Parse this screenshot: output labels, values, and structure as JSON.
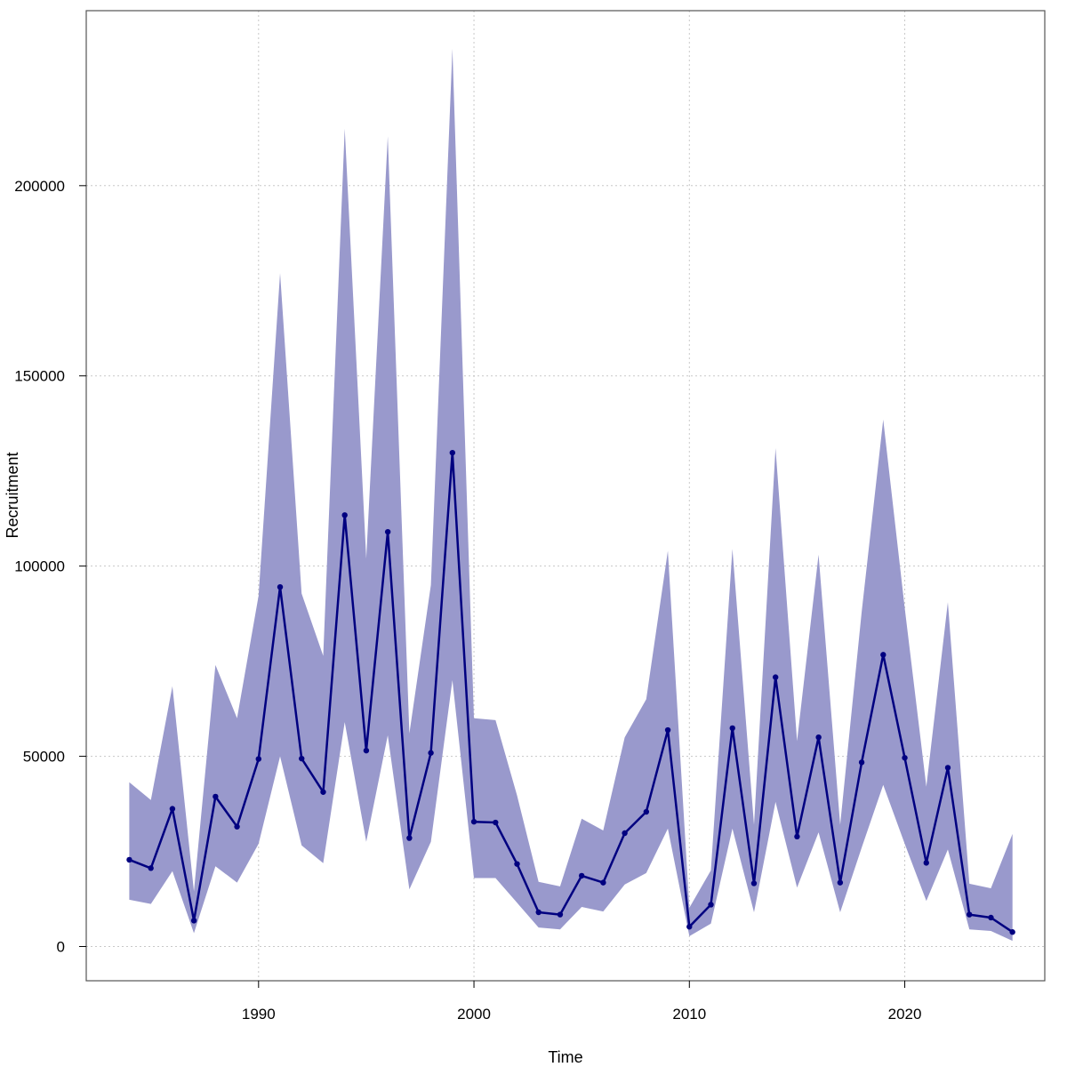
{
  "chart_data": {
    "type": "line",
    "xlabel": "Time",
    "ylabel": "Recruitment",
    "xlim": [
      1982,
      2026.5
    ],
    "ylim": [
      -9000,
      246000
    ],
    "x_ticks": [
      1990,
      2000,
      2010,
      2020
    ],
    "y_ticks": [
      0,
      50000,
      100000,
      150000,
      200000
    ],
    "grid": true,
    "colors": {
      "band": "#9999cc",
      "line": "#000080",
      "grid": "#c8c8c8"
    },
    "x": [
      1984,
      1985,
      1986,
      1987,
      1988,
      1989,
      1990,
      1991,
      1992,
      1993,
      1994,
      1995,
      1996,
      1997,
      1998,
      1999,
      2000,
      2001,
      2002,
      2003,
      2004,
      2005,
      2006,
      2007,
      2008,
      2009,
      2010,
      2011,
      2012,
      2013,
      2014,
      2015,
      2016,
      2017,
      2018,
      2019,
      2020,
      2021,
      2022,
      2023,
      2024,
      2025
    ],
    "series": [
      {
        "values": [
          22800,
          20600,
          36200,
          6800,
          39400,
          31500,
          49300,
          94500,
          49400,
          40600,
          113400,
          51500,
          109000,
          28500,
          50900,
          129800,
          32800,
          32600,
          21700,
          9000,
          8400,
          18600,
          16800,
          29800,
          35400,
          56900,
          5200,
          11000,
          57400,
          16600,
          70800,
          28900,
          55000,
          16800,
          48400,
          76700,
          49600,
          22000,
          47000,
          8400,
          7600,
          3800
        ],
        "lower": [
          12300,
          11200,
          19800,
          3500,
          21100,
          16800,
          27000,
          50000,
          26600,
          21900,
          59000,
          27500,
          55500,
          15000,
          27500,
          70000,
          18000,
          18000,
          11500,
          5000,
          4500,
          10400,
          9200,
          16300,
          19300,
          31000,
          2700,
          6000,
          31000,
          9000,
          38000,
          15500,
          30000,
          9000,
          26000,
          42500,
          27000,
          12000,
          25500,
          4500,
          4100,
          1500
        ],
        "upper": [
          43200,
          38500,
          68400,
          14500,
          74000,
          60000,
          92200,
          177000,
          92800,
          76400,
          215000,
          102000,
          213000,
          56000,
          95000,
          236000,
          60000,
          59500,
          39700,
          17000,
          15800,
          33600,
          30500,
          55000,
          65000,
          104000,
          10200,
          20000,
          104500,
          32000,
          131000,
          54000,
          103000,
          32000,
          88000,
          138500,
          89000,
          42000,
          90500,
          16500,
          15300,
          29600
        ]
      }
    ]
  }
}
